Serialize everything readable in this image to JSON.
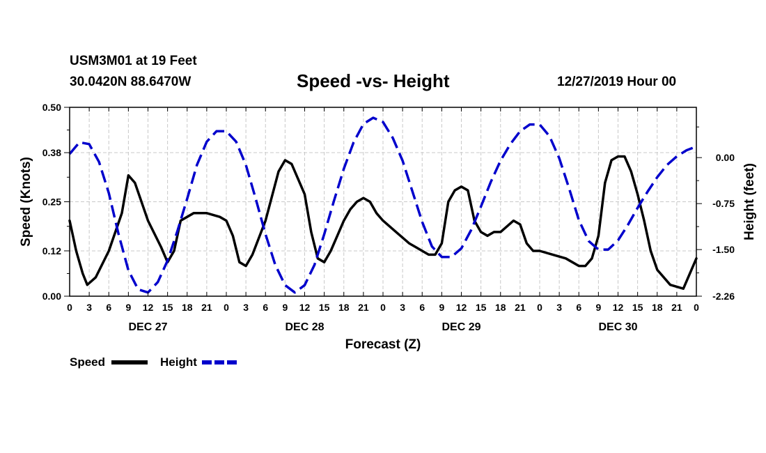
{
  "header": {
    "station": "USM3M01 at 19 Feet",
    "coords": "30.0420N 88.6470W",
    "title": "Speed -vs- Height",
    "datetime": "12/27/2019 Hour 00"
  },
  "legend": {
    "speed_label": "Speed",
    "height_label": "Height"
  },
  "chart_data": {
    "type": "line",
    "title": "Speed -vs- Height",
    "xlabel": "Forecast (Z)",
    "ylabel_left": "Speed (Knots)",
    "ylabel_right": "Height (feet)",
    "x_unit": "hours since 12/27/2019 00Z",
    "xlim": [
      0,
      96
    ],
    "ylim_left": [
      0,
      0.5
    ],
    "ylim_right": [
      -2.26,
      0.82
    ],
    "x_ticks": [
      0,
      3,
      6,
      9,
      12,
      15,
      18,
      21,
      24,
      27,
      30,
      33,
      36,
      39,
      42,
      45,
      48,
      51,
      54,
      57,
      60,
      63,
      66,
      69,
      72,
      75,
      78,
      81,
      84,
      87,
      90,
      93,
      96
    ],
    "x_tick_labels": [
      "0",
      "3",
      "6",
      "9",
      "12",
      "15",
      "18",
      "21",
      "0",
      "3",
      "6",
      "9",
      "12",
      "15",
      "18",
      "21",
      "0",
      "3",
      "6",
      "9",
      "12",
      "15",
      "18",
      "21",
      "0",
      "3",
      "6",
      "9",
      "12",
      "15",
      "18",
      "21",
      "0"
    ],
    "y_ticks_left": [
      0.0,
      0.12,
      0.25,
      0.38,
      0.5
    ],
    "y_tick_labels_left": [
      "0.00",
      "0.12",
      "0.25",
      "0.38",
      "0.50"
    ],
    "y_ticks_right": [
      0.0,
      -0.75,
      -1.5,
      -2.26
    ],
    "y_tick_labels_right": [
      "0.00",
      "-0.75",
      "-1.50",
      "-2.26"
    ],
    "day_labels": [
      {
        "x": 12,
        "label": "DEC 27"
      },
      {
        "x": 36,
        "label": "DEC 28"
      },
      {
        "x": 60,
        "label": "DEC 29"
      },
      {
        "x": 84,
        "label": "DEC 30"
      }
    ],
    "grid": true,
    "series": [
      {
        "name": "Speed",
        "axis": "left",
        "color": "#000000",
        "dash": "solid",
        "x": [
          0,
          1,
          2,
          2.7,
          4,
          6,
          8,
          9,
          10,
          12,
          14,
          15,
          16,
          17,
          18,
          19,
          21,
          23,
          24,
          25,
          26,
          27,
          28,
          30,
          32,
          33,
          34,
          36,
          37,
          38,
          39,
          40,
          41,
          42,
          43,
          44,
          45,
          46,
          47,
          48,
          50,
          52,
          53,
          54,
          55,
          56,
          57,
          58,
          59,
          60,
          61,
          62,
          63,
          64,
          65,
          66,
          68,
          69,
          70,
          71,
          72,
          74,
          76,
          77,
          78,
          79,
          80,
          81,
          82,
          83,
          84,
          85,
          86,
          87,
          88,
          89,
          90,
          92,
          94,
          96
        ],
        "values": [
          0.2,
          0.12,
          0.06,
          0.03,
          0.05,
          0.12,
          0.22,
          0.32,
          0.3,
          0.2,
          0.13,
          0.09,
          0.12,
          0.2,
          0.21,
          0.22,
          0.22,
          0.21,
          0.2,
          0.16,
          0.09,
          0.08,
          0.11,
          0.2,
          0.33,
          0.36,
          0.35,
          0.27,
          0.17,
          0.1,
          0.09,
          0.12,
          0.16,
          0.2,
          0.23,
          0.25,
          0.26,
          0.25,
          0.22,
          0.2,
          0.17,
          0.14,
          0.13,
          0.12,
          0.11,
          0.11,
          0.14,
          0.25,
          0.28,
          0.29,
          0.28,
          0.2,
          0.17,
          0.16,
          0.17,
          0.17,
          0.2,
          0.19,
          0.14,
          0.12,
          0.12,
          0.11,
          0.1,
          0.09,
          0.08,
          0.08,
          0.1,
          0.16,
          0.3,
          0.36,
          0.37,
          0.37,
          0.33,
          0.27,
          0.2,
          0.12,
          0.07,
          0.03,
          0.02,
          0.1
        ]
      },
      {
        "name": "Height",
        "axis": "right",
        "color": "#0000cc",
        "dash": "dashed",
        "x": [
          0,
          1.5,
          3,
          4.5,
          6,
          7.5,
          9,
          10.5,
          12,
          13.5,
          15,
          16.5,
          18,
          19.5,
          21,
          22.5,
          24,
          25.5,
          27,
          28.5,
          30,
          31.5,
          33,
          34.5,
          36,
          37.5,
          39,
          40.5,
          42,
          43.5,
          45,
          46.5,
          48,
          49.5,
          51,
          52.5,
          54,
          55.5,
          57,
          58.5,
          60,
          61.5,
          63,
          64.5,
          66,
          67.5,
          69,
          70.5,
          72,
          73.5,
          75,
          76.5,
          78,
          79.5,
          81,
          82.5,
          84,
          85.5,
          87,
          88.5,
          90,
          91.5,
          93,
          94.5,
          96
        ],
        "values": [
          0.06,
          0.25,
          0.22,
          -0.07,
          -0.58,
          -1.25,
          -1.84,
          -2.15,
          -2.2,
          -2.03,
          -1.68,
          -1.2,
          -0.67,
          -0.12,
          0.26,
          0.43,
          0.43,
          0.26,
          -0.12,
          -0.67,
          -1.25,
          -1.75,
          -2.08,
          -2.2,
          -2.08,
          -1.75,
          -1.25,
          -0.7,
          -0.18,
          0.25,
          0.55,
          0.65,
          0.58,
          0.32,
          -0.05,
          -0.55,
          -1.05,
          -1.45,
          -1.62,
          -1.62,
          -1.48,
          -1.18,
          -0.8,
          -0.4,
          -0.05,
          0.22,
          0.43,
          0.54,
          0.54,
          0.35,
          -0.01,
          -0.5,
          -1.02,
          -1.36,
          -1.5,
          -1.5,
          -1.35,
          -1.1,
          -0.82,
          -0.56,
          -0.32,
          -0.12,
          0.02,
          0.12,
          0.18
        ]
      }
    ]
  }
}
